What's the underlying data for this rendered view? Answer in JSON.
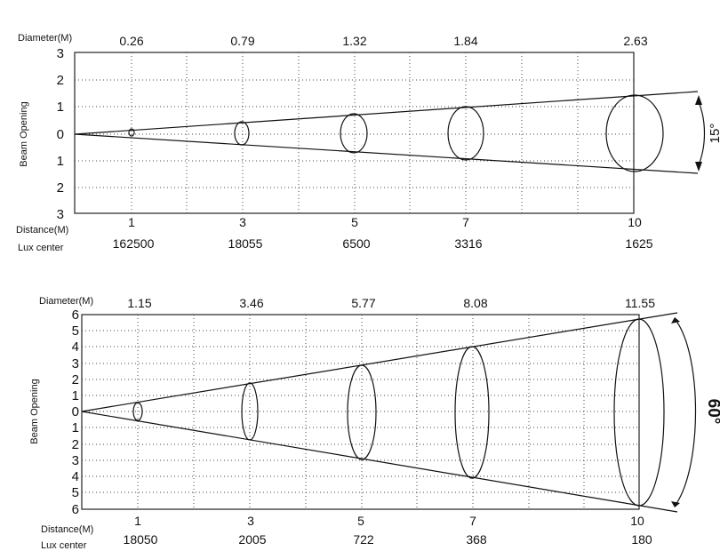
{
  "diagrams": [
    {
      "diameter_label": "Diameter(M)",
      "opening_label": "Beam Opening",
      "distance_label": "Distance(M)",
      "lux_label": "Lux center",
      "angle_label": "15°",
      "y_tick_labels": [
        "3",
        "2",
        "1",
        "0",
        "1",
        "2",
        "3"
      ],
      "points": [
        {
          "distance": "1",
          "diameter": "0.26",
          "lux": "162500"
        },
        {
          "distance": "3",
          "diameter": "0.79",
          "lux": "18055"
        },
        {
          "distance": "5",
          "diameter": "1.32",
          "lux": "6500"
        },
        {
          "distance": "7",
          "diameter": "1.84",
          "lux": "3316"
        },
        {
          "distance": "10",
          "diameter": "2.63",
          "lux": "1625"
        }
      ]
    },
    {
      "diameter_label": "Diameter(M)",
      "opening_label": "Beam Opening",
      "distance_label": "Distance(M)",
      "lux_label": "Lux center",
      "angle_label": "60°",
      "y_tick_labels": [
        "6",
        "5",
        "4",
        "3",
        "2",
        "1",
        "0",
        "1",
        "2",
        "3",
        "4",
        "5",
        "6"
      ],
      "points": [
        {
          "distance": "1",
          "diameter": "1.15",
          "lux": "18050"
        },
        {
          "distance": "3",
          "diameter": "3.46",
          "lux": "2005"
        },
        {
          "distance": "5",
          "diameter": "5.77",
          "lux": "722"
        },
        {
          "distance": "7",
          "diameter": "8.08",
          "lux": "368"
        },
        {
          "distance": "10",
          "diameter": "11.55",
          "lux": "180"
        }
      ]
    }
  ]
}
